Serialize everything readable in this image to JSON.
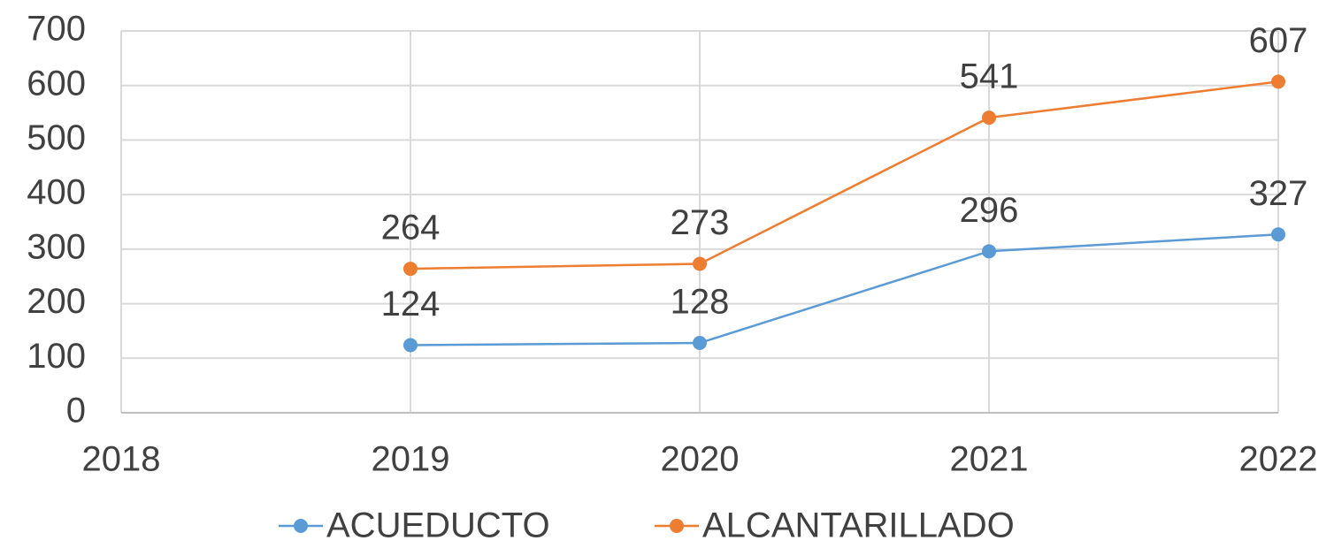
{
  "chart_data": {
    "type": "line",
    "x": [
      2019,
      2020,
      2021,
      2022
    ],
    "series": [
      {
        "name": "ACUEDUCTO",
        "color": "#5b9bd5",
        "values": [
          124,
          128,
          296,
          327
        ]
      },
      {
        "name": "ALCANTARILLADO",
        "color": "#ed7d31",
        "values": [
          264,
          273,
          541,
          607
        ]
      }
    ],
    "xlim": [
      2018,
      2022
    ],
    "xticks": [
      2018,
      2019,
      2020,
      2021,
      2022
    ],
    "ylim": [
      0,
      700
    ],
    "yticks": [
      0,
      100,
      200,
      300,
      400,
      500,
      600,
      700
    ],
    "grid": true,
    "legend": "bottom"
  }
}
